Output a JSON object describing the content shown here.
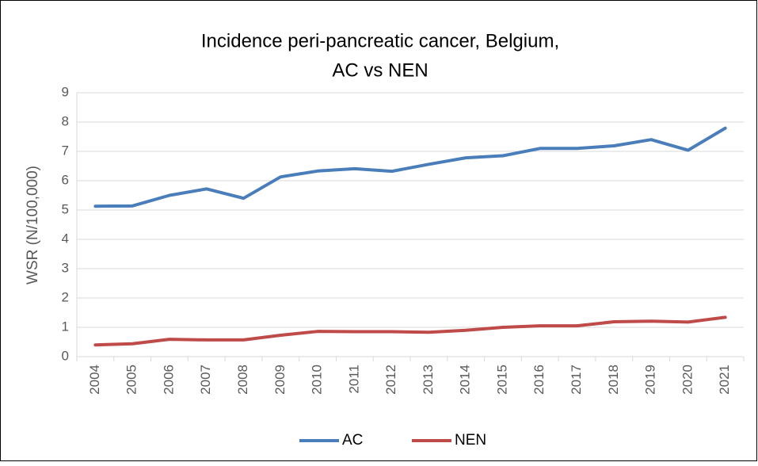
{
  "chart_data": {
    "type": "line",
    "title": [
      "Incidence peri-pancreatic cancer, Belgium,",
      "AC vs NEN"
    ],
    "y_label": "WSR (N/100,000)",
    "categories": [
      "2004",
      "2005",
      "2006",
      "2007",
      "2008",
      "2009",
      "2010",
      "2011",
      "2012",
      "2013",
      "2014",
      "2015",
      "2016",
      "2017",
      "2018",
      "2019",
      "2020",
      "2021"
    ],
    "series": [
      {
        "name": "AC",
        "color": "#4a7ebb",
        "values": [
          5.13,
          5.14,
          5.5,
          5.72,
          5.4,
          6.13,
          6.33,
          6.41,
          6.32,
          6.56,
          6.78,
          6.85,
          7.1,
          7.1,
          7.19,
          7.4,
          7.04,
          7.79
        ]
      },
      {
        "name": "NEN",
        "color": "#be4b48",
        "values": [
          0.4,
          0.44,
          0.59,
          0.57,
          0.57,
          0.73,
          0.86,
          0.85,
          0.85,
          0.83,
          0.9,
          1.0,
          1.05,
          1.05,
          1.19,
          1.21,
          1.18,
          1.34
        ]
      }
    ],
    "ylim": [
      0,
      9
    ],
    "yticks": [
      0,
      1,
      2,
      3,
      4,
      5,
      6,
      7,
      8,
      9
    ],
    "grid": true,
    "legend": "bottom"
  }
}
